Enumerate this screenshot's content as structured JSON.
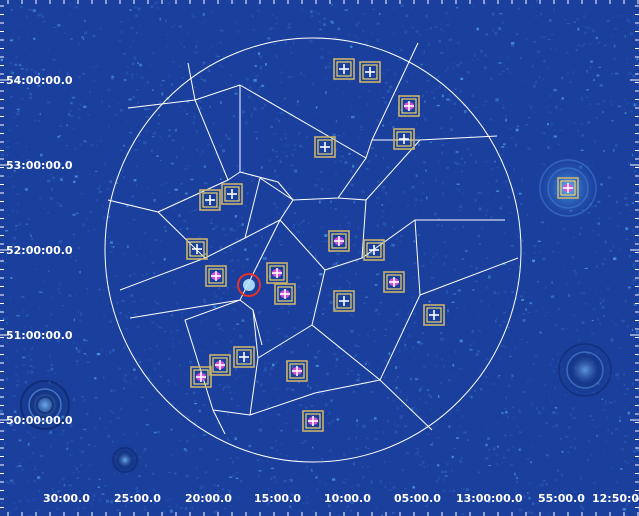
{
  "image": {
    "type": "radio sky image with facet tessellation",
    "colors": {
      "background": "#1b3f9c",
      "noise_bright": "#4fa8e8",
      "noise_dim": "#2c5fc0",
      "facet_lines": "#ffffff",
      "box_outer": "#c9b26b",
      "box_inner": "#e8d36a",
      "source_marker": "#ffffff",
      "extended_source": "#d34fd8",
      "target_circle": "#e8322a"
    },
    "dec_labels": [
      "54:00:00.0",
      "53:00:00.0",
      "52:00:00.0",
      "51:00:00.0",
      "50:00:00.0"
    ],
    "ra_labels": [
      "30:00.0",
      "25:00.0",
      "20:00.0",
      "15:00.0",
      "10:00.0",
      "05:00.0",
      "13:00:00.0",
      "55:00.0",
      "12:50:00"
    ]
  }
}
